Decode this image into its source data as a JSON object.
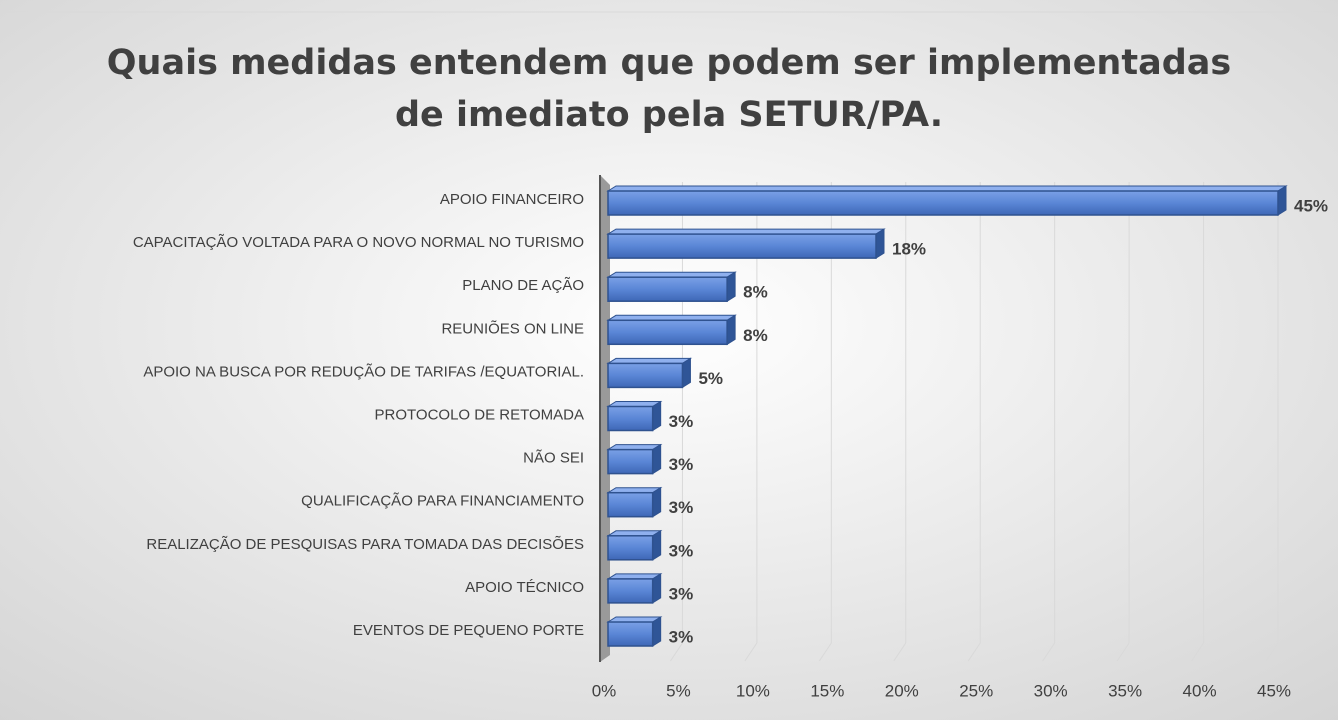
{
  "chart_data": {
    "type": "bar",
    "orientation": "horizontal",
    "title": [
      "Quais medidas entendem que podem ser implementadas",
      "de imediato pela SETUR/PA."
    ],
    "categories": [
      "APOIO FINANCEIRO",
      "CAPACITAÇÃO VOLTADA PARA O NOVO NORMAL NO TURISMO",
      "PLANO DE AÇÃO",
      "REUNIÕES ON LINE",
      "APOIO NA BUSCA POR REDUÇÃO DE TARIFAS /EQUATORIAL.",
      "PROTOCOLO DE RETOMADA",
      "NÃO SEI",
      "QUALIFICAÇÃO PARA FINANCIAMENTO",
      "REALIZAÇÃO DE PESQUISAS PARA TOMADA DAS DECISÕES",
      "APOIO TÉCNICO",
      "EVENTOS DE PEQUENO PORTE"
    ],
    "values": [
      45,
      18,
      8,
      8,
      5,
      3,
      3,
      3,
      3,
      3,
      3
    ],
    "value_labels": [
      "45%",
      "18%",
      "8%",
      "8%",
      "5%",
      "3%",
      "3%",
      "3%",
      "3%",
      "3%",
      "3%"
    ],
    "color": "#4472c4",
    "xlim": [
      0,
      45
    ],
    "xticks": [
      {
        "value": 0,
        "label": "0%"
      },
      {
        "value": 5,
        "label": "5%"
      },
      {
        "value": 10,
        "label": "10%"
      },
      {
        "value": 15,
        "label": "15%"
      },
      {
        "value": 20,
        "label": "20%"
      },
      {
        "value": 25,
        "label": "25%"
      },
      {
        "value": 30,
        "label": "30%"
      },
      {
        "value": 35,
        "label": "35%"
      },
      {
        "value": 40,
        "label": "40%"
      },
      {
        "value": 45,
        "label": "45%"
      }
    ],
    "grid": true
  }
}
